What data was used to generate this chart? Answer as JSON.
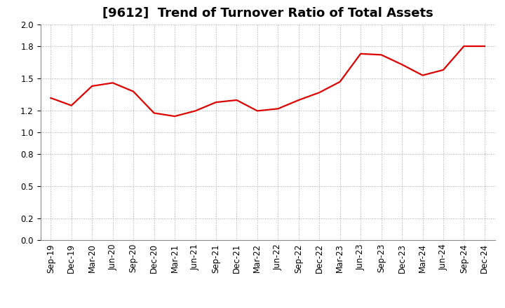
{
  "title": "[9612]  Trend of Turnover Ratio of Total Assets",
  "x_labels": [
    "Sep-19",
    "Dec-19",
    "Mar-20",
    "Jun-20",
    "Sep-20",
    "Dec-20",
    "Mar-21",
    "Jun-21",
    "Sep-21",
    "Dec-21",
    "Mar-22",
    "Jun-22",
    "Sep-22",
    "Dec-22",
    "Mar-23",
    "Jun-23",
    "Sep-23",
    "Dec-23",
    "Mar-24",
    "Jun-24",
    "Sep-24",
    "Dec-24"
  ],
  "y_values": [
    1.32,
    1.25,
    1.43,
    1.46,
    1.38,
    1.18,
    1.15,
    1.2,
    1.28,
    1.3,
    1.2,
    1.22,
    1.3,
    1.37,
    1.47,
    1.73,
    1.72,
    1.63,
    1.53,
    1.58,
    1.8,
    1.8
  ],
  "line_color": "#dd0000",
  "line_width": 1.6,
  "ylim": [
    0.0,
    2.0
  ],
  "yticks": [
    0.0,
    0.2,
    0.5,
    0.8,
    1.0,
    1.2,
    1.5,
    1.8,
    2.0
  ],
  "grid_color": "#aaaaaa",
  "bg_color": "#ffffff",
  "title_fontsize": 13,
  "tick_fontsize": 8.5
}
